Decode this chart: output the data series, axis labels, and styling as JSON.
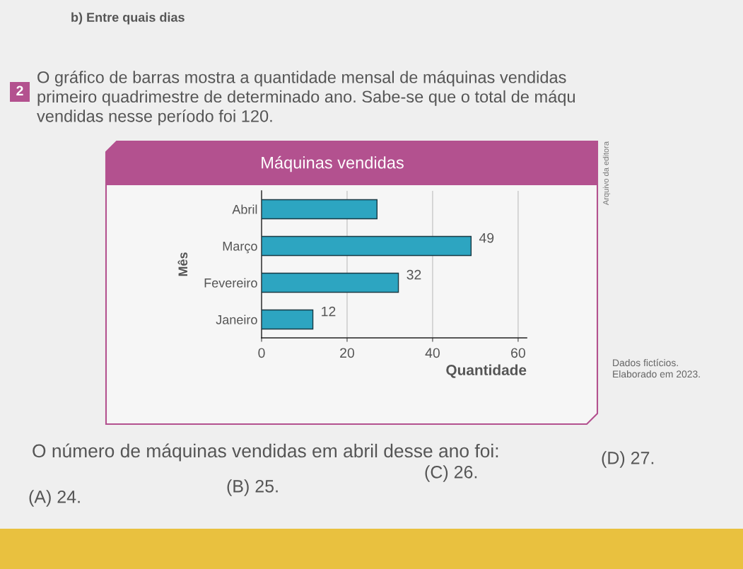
{
  "chart_data": {
    "type": "bar",
    "orientation": "horizontal",
    "title": "Máquinas vendidas",
    "xlabel": "Quantidade",
    "ylabel": "Mês",
    "categories": [
      "Abril",
      "Março",
      "Fevereiro",
      "Janeiro"
    ],
    "values": [
      27,
      49,
      32,
      12
    ],
    "value_labels": [
      null,
      "49",
      "32",
      "12"
    ],
    "color": "#2da5c1",
    "xlim": [
      0,
      62
    ],
    "xticks": [
      0,
      20,
      40,
      60
    ],
    "grid": "x",
    "annotations": [
      "b) Entre quais dias",
      "2",
      "O gráfico de barras mostra a quantidade mensal de máquinas vendidas\nprimeiro quadrimestre de determinado ano. Sabe-se que o total de máqu\nvendidas nesse período foi 120.",
      "Arquivo da editora",
      "Dados fictícios.\nElaborado em 2023.",
      "O número de máquinas vendidas em abril desse ano foi:",
      "(A) 24.",
      "(B) 25.",
      "(C) 26.",
      "(D) 27."
    ]
  }
}
